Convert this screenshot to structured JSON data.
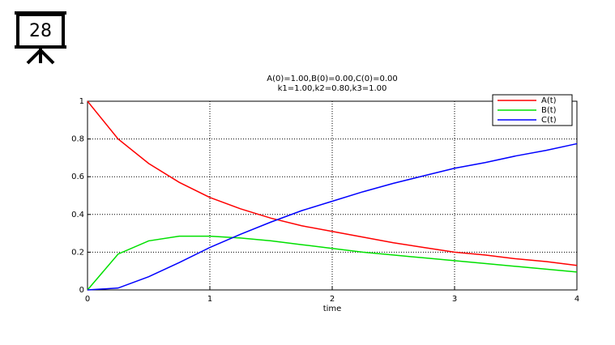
{
  "slide_number": "28",
  "chart_data": {
    "type": "line",
    "title": "A(0)=1.00,B(0)=0.00,C(0)=0.00",
    "subtitle": "k1=1.00,k2=0.80,k3=1.00",
    "x_label": "time",
    "x": [
      0,
      0.25,
      0.5,
      0.75,
      1,
      1.25,
      1.5,
      1.75,
      2,
      2.25,
      2.5,
      2.75,
      3,
      3.25,
      3.5,
      3.75,
      4
    ],
    "series": [
      {
        "name": "A(t)",
        "color": "#ff0000",
        "values": [
          1.0,
          0.8,
          0.67,
          0.57,
          0.49,
          0.43,
          0.38,
          0.34,
          0.31,
          0.28,
          0.25,
          0.225,
          0.2,
          0.185,
          0.165,
          0.15,
          0.13
        ]
      },
      {
        "name": "B(t)",
        "color": "#00e000",
        "values": [
          0,
          0.19,
          0.26,
          0.285,
          0.285,
          0.275,
          0.26,
          0.24,
          0.22,
          0.2,
          0.185,
          0.17,
          0.155,
          0.14,
          0.125,
          0.11,
          0.095
        ]
      },
      {
        "name": "C(t)",
        "color": "#0000ff",
        "values": [
          0,
          0.01,
          0.07,
          0.145,
          0.225,
          0.295,
          0.36,
          0.42,
          0.47,
          0.52,
          0.565,
          0.605,
          0.645,
          0.675,
          0.71,
          0.74,
          0.775
        ]
      }
    ],
    "xlim": [
      0,
      4
    ],
    "xticks": [
      0,
      1,
      2,
      3,
      4
    ],
    "ylim": [
      0,
      1
    ],
    "yticks": [
      0,
      0.2,
      0.4,
      0.6,
      0.8,
      1
    ],
    "grid": true,
    "legend": "upper right"
  }
}
